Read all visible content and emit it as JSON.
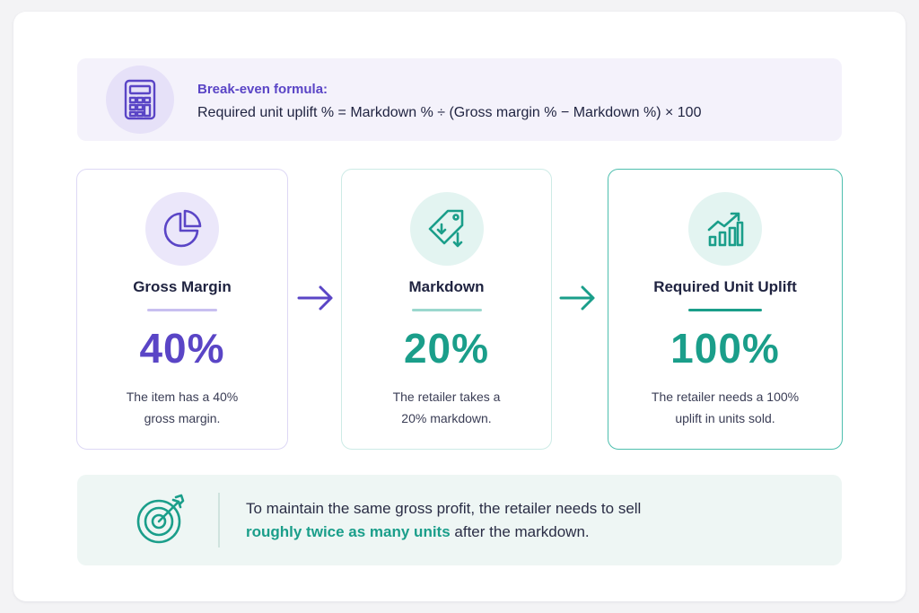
{
  "formula": {
    "title": "Break-even formula:",
    "text": "Required unit uplift % = Markdown % ÷ (Gross margin % − Markdown %) × 100",
    "icon": "calculator-icon"
  },
  "cards": [
    {
      "icon": "pie-chart-icon",
      "title": "Gross Margin",
      "value": "40%",
      "desc_line1": "The item has a 40%",
      "desc_line2": "gross margin."
    },
    {
      "icon": "price-tag-down-icon",
      "title": "Markdown",
      "value": "20%",
      "desc_line1": "The retailer takes a",
      "desc_line2": "20% markdown."
    },
    {
      "icon": "growth-chart-icon",
      "title": "Required Unit Uplift",
      "value": "100%",
      "desc_line1": "The retailer needs a 100%",
      "desc_line2": "uplift in units sold."
    }
  ],
  "summary": {
    "icon": "target-icon",
    "line1": "To maintain the same gross profit, the retailer needs to sell",
    "highlight": "roughly twice as many units",
    "line2_rest": " after the markdown."
  },
  "colors": {
    "purple": "#5a45c6",
    "teal": "#1a9e8a",
    "text": "#1f2340"
  }
}
